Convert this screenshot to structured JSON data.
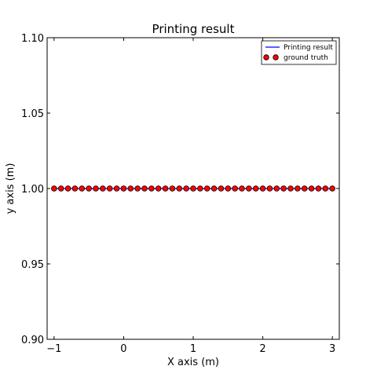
{
  "chart_data": {
    "type": "line",
    "title": "Printing result",
    "xlabel": "X axis (m)",
    "ylabel": "y axis (m)",
    "xlim": [
      -1.1,
      3.1
    ],
    "ylim": [
      0.9,
      1.1
    ],
    "xticks": [
      -1,
      0,
      1,
      2,
      3
    ],
    "xtick_labels": [
      "−1",
      "0",
      "1",
      "2",
      "3"
    ],
    "yticks": [
      0.9,
      0.95,
      1.0,
      1.05,
      1.1
    ],
    "ytick_labels": [
      "0.90",
      "0.95",
      "1.00",
      "1.05",
      "1.10"
    ],
    "grid": false,
    "legend_position": "top-right",
    "series": [
      {
        "name": "Printing result",
        "kind": "line",
        "color": "#0000ff",
        "x": [
          -1.0,
          3.0
        ],
        "y": [
          1.0,
          1.0
        ]
      },
      {
        "name": "ground truth",
        "kind": "scatter",
        "color": "#ff0000",
        "x": [
          -1.0,
          -0.9,
          -0.8,
          -0.7,
          -0.6,
          -0.5,
          -0.4,
          -0.3,
          -0.2,
          -0.1,
          0.0,
          0.1,
          0.2,
          0.3,
          0.4,
          0.5,
          0.6,
          0.7,
          0.8,
          0.9,
          1.0,
          1.1,
          1.2,
          1.3,
          1.4,
          1.5,
          1.6,
          1.7,
          1.8,
          1.9,
          2.0,
          2.1,
          2.2,
          2.3,
          2.4,
          2.5,
          2.6,
          2.7,
          2.8,
          2.9,
          3.0
        ],
        "y": [
          1.0,
          1.0,
          1.0,
          1.0,
          1.0,
          1.0,
          1.0,
          1.0,
          1.0,
          1.0,
          1.0,
          1.0,
          1.0,
          1.0,
          1.0,
          1.0,
          1.0,
          1.0,
          1.0,
          1.0,
          1.0,
          1.0,
          1.0,
          1.0,
          1.0,
          1.0,
          1.0,
          1.0,
          1.0,
          1.0,
          1.0,
          1.0,
          1.0,
          1.0,
          1.0,
          1.0,
          1.0,
          1.0,
          1.0,
          1.0,
          1.0
        ]
      }
    ]
  }
}
